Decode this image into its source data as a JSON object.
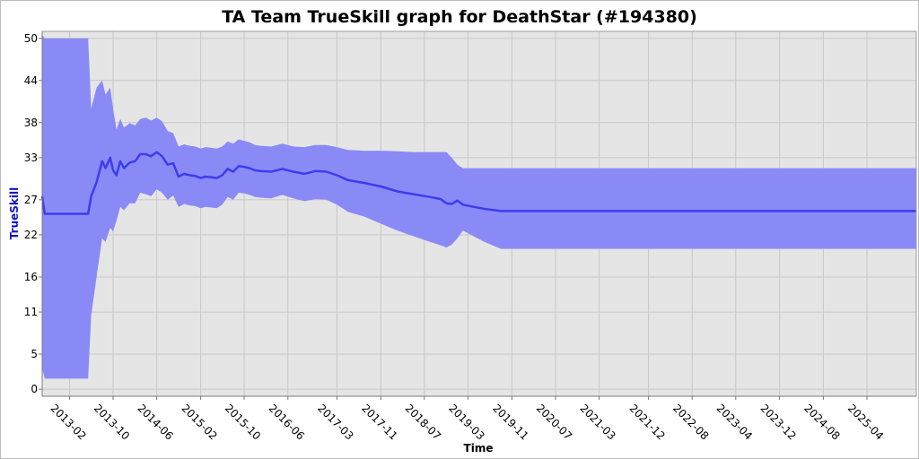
{
  "chart_data": {
    "type": "area",
    "title": "TA Team TrueSkill graph for DeathStar (#194380)",
    "xlabel": "Time",
    "ylabel": "TrueSkill",
    "xlim": [
      "2012-09",
      "2026-01"
    ],
    "ylim": [
      -1,
      51
    ],
    "y_ticks": [
      0,
      5,
      11,
      16,
      22,
      27,
      33,
      38,
      44,
      50
    ],
    "x_ticks": [
      "2013-02",
      "2013-10",
      "2014-06",
      "2015-02",
      "2015-10",
      "2016-06",
      "2017-03",
      "2017-11",
      "2018-07",
      "2019-03",
      "2019-11",
      "2020-07",
      "2021-03",
      "2021-12",
      "2022-08",
      "2023-04",
      "2023-12",
      "2024-08",
      "2025-04"
    ],
    "grid": true,
    "colors": {
      "plot_background": "#e5e5e5",
      "band": "#8a8af6",
      "line": "#3c3cf0",
      "grid": "#c8c8c8"
    },
    "series": [
      {
        "x": [
          "2012-09-01",
          "2012-09-15",
          "2013-05-15",
          "2013-06-01",
          "2013-07-01",
          "2013-08-01",
          "2013-08-20",
          "2013-09-15",
          "2013-10-01",
          "2013-10-20",
          "2013-11-10",
          "2013-12-01",
          "2014-01-01",
          "2014-02-01",
          "2014-03-01",
          "2014-04-01",
          "2014-05-01",
          "2014-06-01",
          "2014-07-01",
          "2014-08-01",
          "2014-09-01",
          "2014-10-01",
          "2014-11-01",
          "2014-12-01",
          "2015-01-01",
          "2015-02-01",
          "2015-03-01",
          "2015-04-01",
          "2015-05-01",
          "2015-06-01",
          "2015-07-01",
          "2015-08-01",
          "2015-09-01",
          "2015-10-01",
          "2015-11-01",
          "2015-12-01",
          "2016-01-01",
          "2016-03-01",
          "2016-05-01",
          "2016-07-01",
          "2016-09-01",
          "2016-11-01",
          "2017-01-01",
          "2017-03-01",
          "2017-05-01",
          "2017-08-01",
          "2017-11-01",
          "2018-02-01",
          "2018-05-01",
          "2018-08-01",
          "2018-10-01",
          "2018-11-01",
          "2018-12-01",
          "2019-01-01",
          "2019-02-01",
          "2019-04-01",
          "2019-06-01",
          "2019-09-01",
          "2020-07-01",
          "2021-03-01",
          "2022-08-01",
          "2024-01-01",
          "2026-01-01"
        ],
        "values": [
          27.5,
          25.0,
          25.0,
          27.5,
          29.5,
          32.5,
          31.5,
          33.0,
          31.2,
          30.5,
          32.5,
          31.5,
          32.3,
          32.5,
          33.5,
          33.5,
          33.2,
          33.8,
          33.2,
          32.0,
          32.2,
          30.3,
          30.7,
          30.5,
          30.4,
          30.1,
          30.3,
          30.2,
          30.1,
          30.5,
          31.4,
          31.0,
          31.8,
          31.7,
          31.5,
          31.2,
          31.1,
          31.0,
          31.4,
          31.0,
          30.7,
          31.1,
          31.0,
          30.5,
          29.8,
          29.4,
          28.9,
          28.2,
          27.8,
          27.4,
          27.1,
          26.5,
          26.4,
          26.9,
          26.3,
          26.0,
          25.7,
          25.4,
          25.4,
          25.4,
          25.4,
          25.4,
          25.4
        ],
        "band_upper": [
          50.5,
          50.0,
          50.0,
          40.0,
          43.0,
          44.0,
          42.0,
          43.0,
          40.0,
          37.0,
          38.5,
          37.3,
          37.9,
          37.6,
          38.5,
          38.7,
          38.3,
          38.7,
          38.2,
          36.8,
          36.5,
          34.6,
          34.9,
          34.7,
          34.6,
          34.3,
          34.5,
          34.4,
          34.3,
          34.6,
          35.3,
          35.0,
          35.6,
          35.4,
          35.2,
          34.8,
          34.7,
          34.6,
          35.0,
          34.6,
          34.5,
          34.8,
          34.8,
          34.5,
          34.1,
          34.0,
          34.0,
          33.9,
          33.8,
          33.8,
          33.8,
          33.8,
          33.0,
          32.0,
          31.5,
          31.5,
          31.5,
          31.5,
          31.5,
          31.5,
          31.5,
          31.5,
          31.5
        ],
        "band_lower": [
          3.0,
          1.5,
          1.5,
          10.5,
          16.0,
          21.5,
          21.0,
          23.0,
          22.5,
          24.0,
          26.0,
          25.5,
          26.5,
          26.5,
          28.0,
          27.8,
          27.5,
          28.5,
          28.0,
          27.0,
          27.6,
          26.0,
          26.4,
          26.2,
          26.1,
          25.8,
          26.0,
          25.9,
          25.8,
          26.3,
          27.4,
          27.0,
          28.0,
          27.9,
          27.7,
          27.4,
          27.3,
          27.2,
          27.7,
          27.2,
          26.8,
          27.1,
          27.0,
          26.3,
          25.3,
          24.6,
          23.6,
          22.6,
          21.8,
          21.0,
          20.5,
          20.2,
          20.6,
          21.5,
          22.6,
          21.8,
          21.0,
          20.0,
          20.0,
          20.0,
          20.0,
          20.0,
          20.0
        ]
      }
    ]
  }
}
